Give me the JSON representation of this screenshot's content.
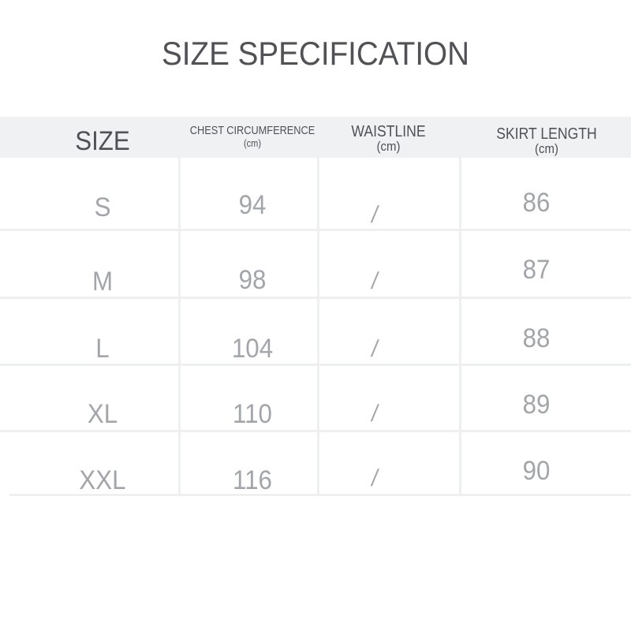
{
  "title": "SIZE SPECIFICATION",
  "table": {
    "headers": [
      {
        "label": "SIZE",
        "unit": ""
      },
      {
        "label": "CHEST CIRCUMFERENCE",
        "unit": "(cm)"
      },
      {
        "label": "WAISTLINE",
        "unit": "(cm)"
      },
      {
        "label": "SKIRT LENGTH",
        "unit": "(cm)"
      }
    ],
    "rows": [
      {
        "size": "S",
        "chest": "94",
        "waist": "/",
        "skirt": "86"
      },
      {
        "size": "M",
        "chest": "98",
        "waist": "/",
        "skirt": "87"
      },
      {
        "size": "L",
        "chest": "104",
        "waist": "/",
        "skirt": "88"
      },
      {
        "size": "XL",
        "chest": "110",
        "waist": "/",
        "skirt": "89"
      },
      {
        "size": "XXL",
        "chest": "116",
        "waist": "/",
        "skirt": "90"
      }
    ]
  },
  "colors": {
    "header_bg": "#f0f1f3",
    "title": "#505257",
    "value_text": "#a2a5ab",
    "grid": "#eeeff1"
  }
}
